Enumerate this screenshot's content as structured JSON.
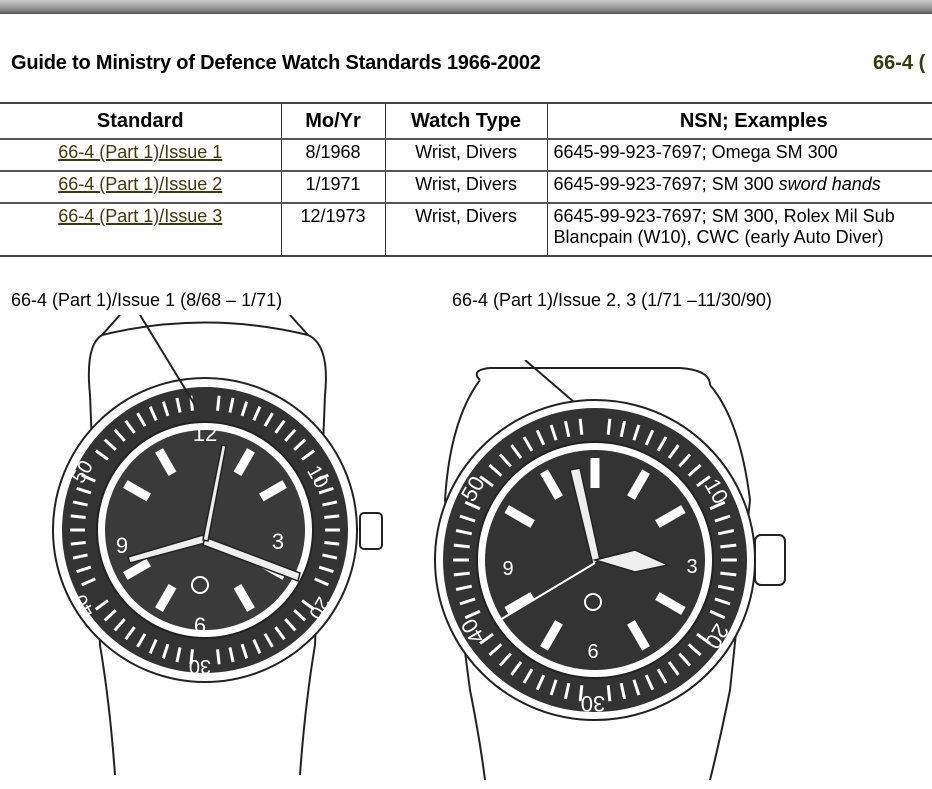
{
  "document": {
    "title": "Guide to Ministry of Defence Watch Standards 1966-2002",
    "section_ref": "66-4 ("
  },
  "table": {
    "headers": [
      "Standard",
      "Mo/Yr",
      "Watch Type",
      "NSN; Examples"
    ],
    "rows": [
      {
        "standard": "66-4 (Part 1)/Issue 1",
        "moyr": "8/1968",
        "type": "Wrist, Divers",
        "nsn": "6645-99-923-7697; Omega SM 300",
        "nsn_italic": "",
        "nsn2": ""
      },
      {
        "standard": "66-4 (Part 1)/Issue 2",
        "moyr": "1/1971",
        "type": "Wrist, Divers",
        "nsn": "6645-99-923-7697; SM 300 ",
        "nsn_italic": "sword hands",
        "nsn2": ""
      },
      {
        "standard": "66-4 (Part 1)/Issue 3",
        "moyr": "12/1973",
        "type": "Wrist, Divers",
        "nsn": "6645-99-923-7697; SM 300, Rolex Mil Sub",
        "nsn_italic": "",
        "nsn2": "Blancpain (W10), CWC (early Auto Diver)"
      }
    ],
    "link_color": "#3e3a10"
  },
  "figures": [
    {
      "caption": "66-4 (Part 1)/Issue 1 (8/68 – 1/71)",
      "bezel": [
        "10",
        "20",
        "30",
        "40",
        "50"
      ],
      "dial": [
        "12",
        "3",
        "6",
        "9"
      ]
    },
    {
      "caption": "66-4 (Part 1)/Issue 2, 3 (1/71 –11/30/90)",
      "bezel": [
        "10",
        "20",
        "30",
        "40",
        "50"
      ],
      "dial": [
        "3",
        "6",
        "9"
      ]
    }
  ]
}
